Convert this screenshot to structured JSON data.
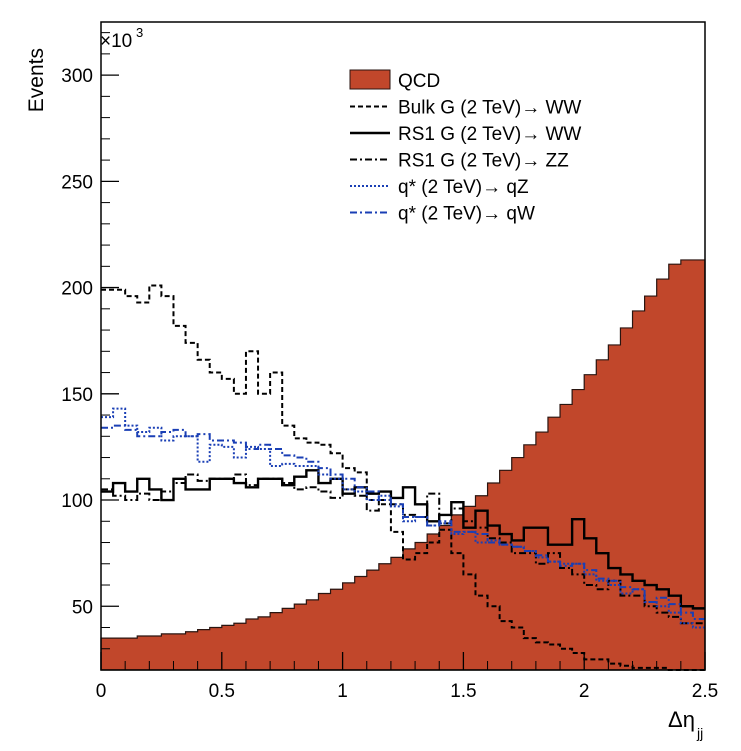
{
  "chart_data": {
    "type": "line",
    "subtype": "histogram",
    "ylabel": "Events",
    "xlabel": "Δη",
    "xlabel_sub": "jj",
    "y_multiplier_label": "×10",
    "y_multiplier_exponent": "3",
    "xlim": [
      0,
      2.5
    ],
    "ylim": [
      20,
      325
    ],
    "x_ticks": [
      0,
      0.5,
      1,
      1.5,
      2,
      2.5
    ],
    "x_tick_labels": [
      "0",
      "0.5",
      "1",
      "1.5",
      "2",
      "2.5"
    ],
    "y_ticks": [
      50,
      100,
      150,
      200,
      250,
      300
    ],
    "y_tick_labels": [
      "50",
      "100",
      "150",
      "200",
      "250",
      "300"
    ],
    "bin_edges": [
      0,
      0.05,
      0.1,
      0.15,
      0.2,
      0.25,
      0.3,
      0.35,
      0.4,
      0.45,
      0.5,
      0.55,
      0.6,
      0.65,
      0.7,
      0.75,
      0.8,
      0.85,
      0.9,
      0.95,
      1.0,
      1.05,
      1.1,
      1.15,
      1.2,
      1.25,
      1.3,
      1.35,
      1.4,
      1.45,
      1.5,
      1.55,
      1.6,
      1.65,
      1.7,
      1.75,
      1.8,
      1.85,
      1.9,
      1.95,
      2.0,
      2.05,
      2.1,
      2.15,
      2.2,
      2.25,
      2.3,
      2.35,
      2.4,
      2.45,
      2.5
    ],
    "legend_position": "top-right",
    "series": [
      {
        "name": "QCD",
        "style": "filled",
        "color": "#c1472b",
        "values": [
          35,
          35,
          35,
          36,
          36,
          37,
          37,
          38,
          39,
          40,
          41,
          42,
          44,
          45,
          47,
          49,
          51,
          53,
          56,
          58,
          61,
          64,
          67,
          70,
          73,
          77,
          80,
          84,
          88,
          93,
          97,
          102,
          108,
          114,
          120,
          126,
          132,
          139,
          145,
          152,
          159,
          166,
          173,
          181,
          189,
          196,
          204,
          211,
          213,
          213
        ]
      },
      {
        "name": "Bulk G (2 TeV)→ WW",
        "style": "dashed",
        "color": "#000000",
        "values": [
          199,
          199,
          196,
          193,
          201,
          196,
          182,
          174,
          166,
          160,
          157,
          150,
          170,
          150,
          160,
          135,
          129,
          127,
          126,
          122,
          115,
          113,
          100,
          98,
          85,
          72,
          75,
          80,
          86,
          75,
          65,
          55,
          50,
          43,
          40,
          35,
          33,
          32,
          30,
          28,
          25,
          25,
          23,
          22,
          21,
          21,
          21,
          20,
          20,
          20
        ]
      },
      {
        "name": "RS1 G (2 TeV)→ WW",
        "style": "solid",
        "color": "#000000",
        "values": [
          104,
          108,
          104,
          110,
          105,
          100,
          110,
          105,
          105,
          110,
          110,
          108,
          106,
          110,
          110,
          107,
          111,
          114,
          108,
          110,
          103,
          106,
          103,
          104,
          101,
          106,
          98,
          90,
          93,
          99,
          87,
          95,
          88,
          84,
          81,
          87,
          87,
          79,
          79,
          91,
          82,
          75,
          68,
          65,
          62,
          60,
          58,
          55,
          50,
          49
        ]
      },
      {
        "name": "RS1 G (2 TeV)→ ZZ",
        "style": "dash-dot",
        "color": "#000000",
        "values": [
          105,
          102,
          100,
          103,
          100,
          104,
          108,
          112,
          109,
          110,
          110,
          112,
          107,
          110,
          110,
          108,
          105,
          106,
          104,
          101,
          105,
          102,
          95,
          100,
          98,
          93,
          92,
          103,
          89,
          96,
          90,
          87,
          82,
          80,
          75,
          75,
          70,
          75,
          68,
          65,
          60,
          58,
          62,
          55,
          55,
          50,
          47,
          45,
          42,
          42
        ]
      },
      {
        "name": "q* (2 TeV)→ qZ",
        "style": "dotted",
        "color": "#1a3fb5",
        "values": [
          139,
          143,
          135,
          132,
          134,
          128,
          130,
          130,
          118,
          126,
          125,
          120,
          125,
          124,
          116,
          117,
          116,
          116,
          112,
          110,
          105,
          104,
          100,
          102,
          97,
          90,
          92,
          88,
          89,
          84,
          85,
          80,
          81,
          79,
          78,
          76,
          73,
          71,
          70,
          70,
          65,
          62,
          60,
          56,
          58,
          52,
          50,
          47,
          42,
          40
        ]
      },
      {
        "name": "q* (2 TeV)→ qW",
        "style": "dash-dot",
        "color": "#1a3fb5",
        "values": [
          134,
          135,
          133,
          130,
          130,
          132,
          133,
          130,
          131,
          128,
          128,
          127,
          124,
          126,
          124,
          121,
          120,
          118,
          115,
          112,
          110,
          106,
          104,
          100,
          98,
          92,
          92,
          88,
          90,
          85,
          85,
          84,
          80,
          79,
          78,
          76,
          74,
          71,
          69,
          70,
          67,
          63,
          62,
          59,
          58,
          52,
          54,
          51,
          47,
          44
        ]
      }
    ]
  }
}
